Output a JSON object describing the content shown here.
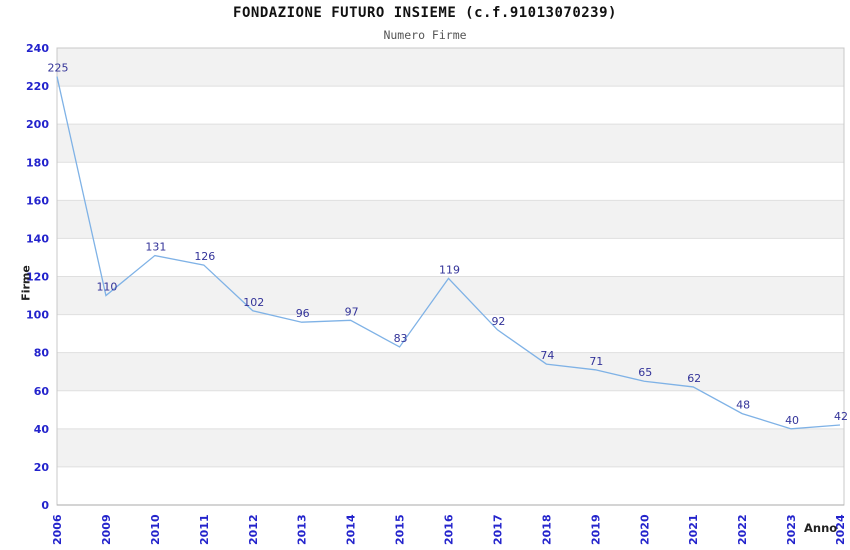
{
  "title": "FONDAZIONE FUTURO INSIEME (c.f.91013070239)",
  "subtitle": "Numero Firme",
  "chart_data": {
    "type": "line",
    "title": "FONDAZIONE FUTURO INSIEME (c.f.91013070239)",
    "subtitle": "Numero Firme",
    "xlabel": "Anno",
    "ylabel": "Firme",
    "categories": [
      "2006",
      "2009",
      "2010",
      "2011",
      "2012",
      "2013",
      "2014",
      "2015",
      "2016",
      "2017",
      "2018",
      "2019",
      "2020",
      "2021",
      "2022",
      "2023",
      "2024"
    ],
    "values": [
      225,
      110,
      131,
      126,
      102,
      96,
      97,
      83,
      119,
      92,
      74,
      71,
      65,
      62,
      48,
      40,
      42
    ],
    "ylim": [
      0,
      240
    ],
    "ytick_step": 20,
    "legend": "none",
    "grid": "horizontal-bands",
    "point_labels_visible": true,
    "colors": {
      "line": "#7fb2e6",
      "point_label": "#333399",
      "tick_label": "#2323cc",
      "band": "#f2f2f2",
      "gridline": "#dfdfdf",
      "border": "#c8c8c8",
      "axis_line": "#aaaaaa",
      "title": "#111111",
      "subtitle": "#555555",
      "axis_label": "#222222"
    }
  }
}
